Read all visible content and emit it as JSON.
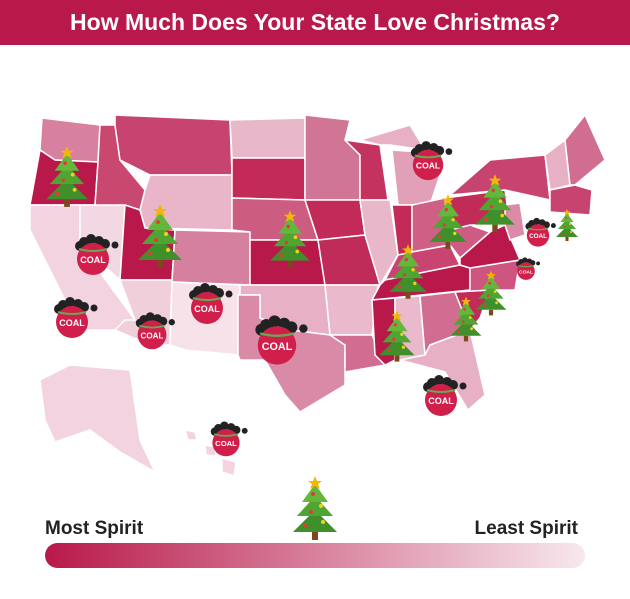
{
  "header": {
    "title": "How Much Does Your State Love Christmas?"
  },
  "map": {
    "coal_label": "COAL"
  },
  "legend": {
    "most": "Most Spirit",
    "least": "Least Spirit"
  }
}
